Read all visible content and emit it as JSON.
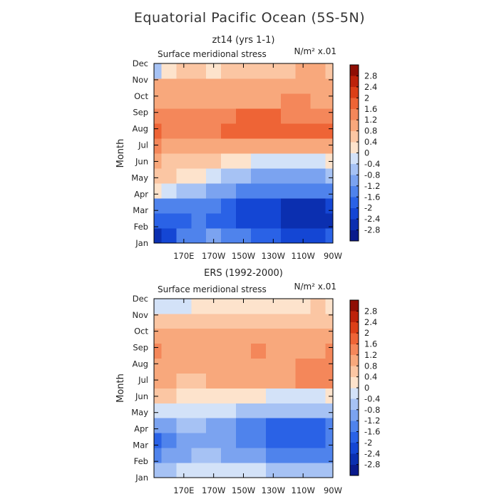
{
  "title": "Equatorial Pacific Ocean (5S-5N)",
  "colorbar": {
    "levels": [
      -3.2,
      -2.8,
      -2.4,
      -2.0,
      -1.6,
      -1.2,
      -0.8,
      -0.4,
      0,
      0.4,
      0.8,
      1.2,
      1.6,
      2.0,
      2.4,
      2.8,
      3.2
    ],
    "labels": [
      "-2.8",
      "-2.4",
      "-2",
      "-1.6",
      "-1.2",
      "-0.8",
      "-0.4",
      "0",
      "0.4",
      "0.8",
      "1.2",
      "1.6",
      "2",
      "2.4",
      "2.8"
    ],
    "colors": [
      "#0a1a8c",
      "#0b2fb0",
      "#1446d4",
      "#2a62e6",
      "#4f83ec",
      "#7ba3f0",
      "#a6c2f4",
      "#d3e2f8",
      "#fde3cc",
      "#fbc6a3",
      "#f8a87c",
      "#f4875a",
      "#ee6436",
      "#dc3f17",
      "#bd220a",
      "#8f0f05"
    ]
  },
  "chart_data": [
    {
      "type": "heatmap",
      "subtitle": "zt14 (yrs 1-1)",
      "variable_label": "Surface meridional stress",
      "units_label": "N/m² x.01",
      "ylabel": "Month",
      "xlabel": "",
      "y_categories": [
        "Jan",
        "Feb",
        "Mar",
        "Apr",
        "May",
        "Jun",
        "Jul",
        "Aug",
        "Sep",
        "Oct",
        "Nov",
        "Dec"
      ],
      "x": [
        150,
        160,
        170,
        180,
        190,
        200,
        210,
        220,
        230,
        240,
        250,
        260,
        270
      ],
      "xlim": [
        150,
        270
      ],
      "xticks": [
        170,
        190,
        210,
        230,
        250,
        270
      ],
      "xtick_labels": [
        "170E",
        "170W",
        "150W",
        "130W",
        "110W",
        "90W"
      ],
      "values": [
        [
          -2.5,
          -2.2,
          -1.6,
          -1.4,
          -1.2,
          -1.4,
          -1.6,
          -1.8,
          -2.0,
          -2.2,
          -2.2,
          -2.2,
          -2.0
        ],
        [
          -2.0,
          -1.8,
          -1.8,
          -1.6,
          -1.8,
          -2.0,
          -2.2,
          -2.4,
          -2.4,
          -2.6,
          -2.8,
          -2.8,
          -2.6
        ],
        [
          -1.4,
          -1.6,
          -1.6,
          -1.6,
          -1.6,
          -1.8,
          -2.2,
          -2.4,
          -2.4,
          -2.6,
          -2.6,
          -2.6,
          -2.4
        ],
        [
          0.2,
          -0.2,
          -0.6,
          -0.8,
          -1.0,
          -1.2,
          -1.4,
          -1.6,
          -1.6,
          -1.6,
          -1.6,
          -1.6,
          -1.4
        ],
        [
          0.4,
          0.4,
          0.2,
          0.0,
          -0.4,
          -0.6,
          -0.8,
          -1.0,
          -1.0,
          -1.0,
          -1.0,
          -1.0,
          -0.8
        ],
        [
          0.8,
          0.6,
          0.6,
          0.4,
          0.4,
          0.2,
          0.0,
          -0.2,
          -0.2,
          -0.2,
          -0.2,
          -0.2,
          0.0
        ],
        [
          1.2,
          1.0,
          1.0,
          1.0,
          0.8,
          0.8,
          0.8,
          0.8,
          0.8,
          0.8,
          0.8,
          0.8,
          0.8
        ],
        [
          1.7,
          1.3,
          1.2,
          1.4,
          1.5,
          1.6,
          1.8,
          1.8,
          1.8,
          1.6,
          1.6,
          1.6,
          1.8
        ],
        [
          1.4,
          1.2,
          1.2,
          1.2,
          1.4,
          1.4,
          1.6,
          1.6,
          1.6,
          1.4,
          1.4,
          1.4,
          1.4
        ],
        [
          1.0,
          1.0,
          1.0,
          1.0,
          1.0,
          1.0,
          1.0,
          1.0,
          1.0,
          1.2,
          1.2,
          1.0,
          1.0
        ],
        [
          0.8,
          0.8,
          0.8,
          0.8,
          0.8,
          0.8,
          0.8,
          0.8,
          0.8,
          0.8,
          1.0,
          1.0,
          0.8
        ],
        [
          -0.6,
          0.2,
          0.4,
          0.4,
          0.2,
          0.4,
          0.4,
          0.4,
          0.6,
          0.6,
          0.8,
          0.8,
          0.6
        ]
      ]
    },
    {
      "type": "heatmap",
      "subtitle": "ERS (1992-2000)",
      "variable_label": "Surface meridional stress",
      "units_label": "N/m² x.01",
      "ylabel": "Month",
      "xlabel": "",
      "y_categories": [
        "Jan",
        "Feb",
        "Mar",
        "Apr",
        "May",
        "Jun",
        "Jul",
        "Aug",
        "Sep",
        "Oct",
        "Nov",
        "Dec"
      ],
      "x": [
        150,
        160,
        170,
        180,
        190,
        200,
        210,
        220,
        230,
        240,
        250,
        260,
        270
      ],
      "xlim": [
        150,
        270
      ],
      "xticks": [
        170,
        190,
        210,
        230,
        250,
        270
      ],
      "xtick_labels": [
        "170E",
        "170W",
        "150W",
        "130W",
        "110W",
        "90W"
      ],
      "values": [
        [
          -0.6,
          -0.6,
          -0.4,
          -0.4,
          -0.2,
          -0.2,
          -0.4,
          -0.4,
          -0.6,
          -0.8,
          -0.8,
          -0.8,
          -0.6
        ],
        [
          -1.4,
          -1.0,
          -1.0,
          -0.8,
          -0.8,
          -1.0,
          -1.2,
          -1.2,
          -1.4,
          -1.6,
          -1.6,
          -1.6,
          -1.4
        ],
        [
          -1.8,
          -1.4,
          -1.2,
          -1.0,
          -1.0,
          -1.2,
          -1.4,
          -1.6,
          -1.8,
          -2.0,
          -2.0,
          -2.0,
          -1.6
        ],
        [
          -1.2,
          -1.0,
          -0.8,
          -0.8,
          -1.0,
          -1.2,
          -1.4,
          -1.6,
          -1.8,
          -1.8,
          -1.8,
          -1.8,
          -1.4
        ],
        [
          -0.2,
          -0.2,
          -0.2,
          -0.4,
          -0.4,
          -0.4,
          -0.6,
          -0.6,
          -0.8,
          -0.8,
          -0.8,
          -0.8,
          -0.6
        ],
        [
          0.4,
          0.4,
          0.2,
          0.2,
          0.2,
          0.2,
          0.0,
          0.0,
          -0.2,
          -0.2,
          -0.2,
          -0.2,
          0.0
        ],
        [
          0.8,
          0.8,
          0.6,
          0.6,
          0.8,
          0.8,
          0.8,
          0.8,
          0.8,
          0.8,
          1.2,
          1.4,
          1.2
        ],
        [
          1.0,
          0.8,
          0.8,
          0.8,
          1.0,
          1.0,
          1.0,
          1.0,
          1.0,
          1.0,
          1.2,
          1.2,
          1.2
        ],
        [
          1.2,
          0.8,
          0.8,
          1.0,
          1.0,
          1.0,
          1.0,
          1.2,
          1.0,
          1.0,
          1.0,
          1.0,
          1.4
        ],
        [
          0.8,
          0.8,
          0.8,
          0.8,
          0.8,
          0.8,
          0.8,
          1.0,
          0.8,
          0.8,
          0.8,
          0.8,
          1.0
        ],
        [
          0.4,
          0.4,
          0.4,
          0.4,
          0.4,
          0.4,
          0.4,
          0.6,
          0.6,
          0.6,
          0.6,
          0.6,
          0.6
        ],
        [
          -0.2,
          -0.2,
          -0.2,
          0.0,
          0.0,
          0.0,
          0.2,
          0.2,
          0.2,
          0.2,
          0.2,
          0.4,
          0.2
        ]
      ]
    }
  ]
}
